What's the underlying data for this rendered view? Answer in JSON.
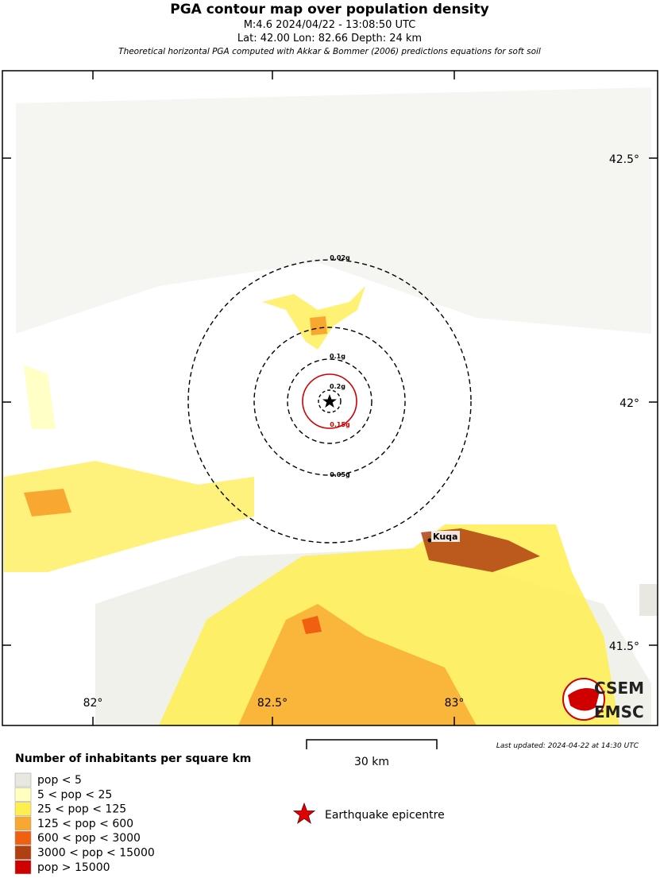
{
  "header": {
    "title": "PGA contour map over population density",
    "event": "M:4.6 2024/04/22 - 13:08:50 UTC",
    "location": "Lat: 42.00 Lon: 82.66 Depth: 24 km",
    "note": "Theoretical horizontal PGA computed with Akkar & Bommer (2006) predictions equations for soft soil"
  },
  "map": {
    "lat_labels": [
      "42.5°",
      "42°",
      "41.5°"
    ],
    "lon_labels": [
      "82°",
      "82.5°",
      "83°"
    ],
    "contours": [
      "0.02g",
      "0.05g",
      "0.1g",
      "0.15g",
      "0.2g"
    ],
    "city": "Kuqa",
    "logo": [
      "CSEM",
      "EMSC"
    ]
  },
  "scale": "30 km",
  "last_updated": "Last updated: 2024-04-22 at 14:30 UTC",
  "legend": {
    "title": "Number of inhabitants per square km",
    "items": [
      "pop < 5",
      "5 < pop < 25",
      "25 < pop < 125",
      "125 < pop < 600",
      "600 < pop < 3000",
      "3000 < pop < 15000",
      "pop > 15000"
    ],
    "epicentre": "Earthquake epicentre"
  }
}
